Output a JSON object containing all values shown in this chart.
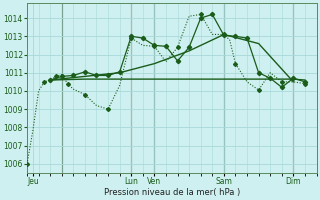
{
  "background_color": "#cff0f0",
  "grid_color": "#a8d8d8",
  "line_color": "#1a5c1a",
  "title": "Pression niveau de la mer( hPa )",
  "ylim": [
    1005.5,
    1014.8
  ],
  "yticks": [
    1006,
    1007,
    1008,
    1009,
    1010,
    1011,
    1012,
    1013,
    1014
  ],
  "xlim": [
    0,
    25
  ],
  "vline_positions": [
    3,
    9,
    11,
    17,
    23
  ],
  "xtick_positions": [
    0.5,
    9,
    11,
    17,
    23
  ],
  "xtick_labels": [
    "Jeu",
    "Lun",
    "Ven",
    "Sam",
    "Dim"
  ],
  "series1_dotted": {
    "x": [
      0,
      0.5,
      1,
      1.5,
      2,
      2.5,
      3,
      3.5,
      4,
      5,
      6,
      7,
      8,
      9,
      10,
      11,
      12,
      13,
      14,
      15,
      16,
      17,
      17.5,
      18,
      19,
      20,
      21,
      22,
      23,
      24
    ],
    "y": [
      1006.0,
      1007.8,
      1010.0,
      1010.5,
      1010.6,
      1010.8,
      1010.9,
      1010.4,
      1010.1,
      1009.8,
      1009.2,
      1009.0,
      1010.3,
      1012.9,
      1012.5,
      1012.45,
      1011.6,
      1012.4,
      1014.1,
      1014.2,
      1013.1,
      1013.1,
      1012.8,
      1011.5,
      1010.5,
      1010.05,
      1011.0,
      1010.5,
      1010.5,
      1010.4
    ]
  },
  "series2_solid_markers": {
    "x": [
      2,
      3,
      4,
      5,
      6,
      7,
      8,
      9,
      10,
      11,
      12,
      13,
      14,
      15,
      16,
      17,
      18,
      19,
      20,
      21,
      22,
      23,
      24
    ],
    "y": [
      1010.6,
      1010.8,
      1010.85,
      1011.05,
      1010.85,
      1010.85,
      1011.05,
      1013.0,
      1012.9,
      1012.5,
      1012.45,
      1011.65,
      1012.4,
      1014.0,
      1014.2,
      1013.05,
      1013.0,
      1012.9,
      1011.0,
      1010.7,
      1010.2,
      1010.7,
      1010.5
    ]
  },
  "series3_diagonal": {
    "x": [
      2,
      5,
      8,
      11,
      14,
      17,
      20,
      23
    ],
    "y": [
      1010.6,
      1010.8,
      1011.0,
      1011.5,
      1012.2,
      1013.1,
      1012.6,
      1010.5
    ]
  },
  "series4_flat": {
    "x": [
      2,
      5,
      8,
      11,
      14,
      17,
      20,
      23,
      24
    ],
    "y": [
      1010.6,
      1010.65,
      1010.65,
      1010.65,
      1010.65,
      1010.65,
      1010.65,
      1010.65,
      1010.6
    ]
  }
}
